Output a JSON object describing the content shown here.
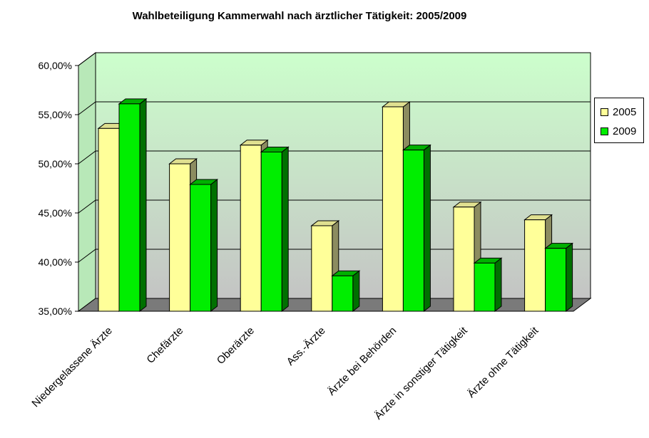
{
  "chart_data": {
    "type": "bar",
    "title": "Wahlbeteiligung Kammerwahl nach ärztlicher Tätigkeit: 2005/2009",
    "categories": [
      "Niedergelassene Ärzte",
      "Chefärzte",
      "Oberärzte",
      "Ass.-Ärzte",
      "Ärzte bei Behörden",
      "Ärzte in sonstiger Tätigkeit",
      "Ärzte ohne Tätigkeit"
    ],
    "series": [
      {
        "name": "2005",
        "values": [
          53.6,
          50.0,
          51.9,
          43.7,
          55.8,
          45.6,
          44.3
        ],
        "color": "#ffff99"
      },
      {
        "name": "2009",
        "values": [
          56.1,
          47.9,
          51.2,
          38.6,
          51.4,
          39.9,
          41.4
        ],
        "color": "#00ee00"
      }
    ],
    "ylim": [
      35,
      60
    ],
    "yticks": [
      "35,00%",
      "40,00%",
      "45,00%",
      "50,00%",
      "55,00%",
      "60,00%"
    ],
    "xlabel": "",
    "ylabel": "",
    "grid": true,
    "legend": "right"
  }
}
